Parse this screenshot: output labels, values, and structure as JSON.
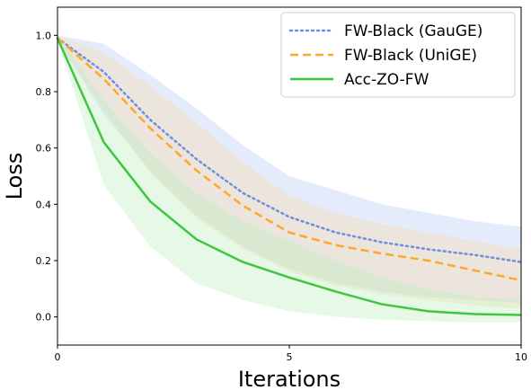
{
  "chart_data": {
    "type": "line",
    "xlabel": "Iterations",
    "ylabel": "Loss",
    "xlim": [
      0,
      10
    ],
    "ylim": [
      -0.1,
      1.1
    ],
    "x_ticks": [
      0,
      5,
      10
    ],
    "y_ticks": [
      0.0,
      0.2,
      0.4,
      0.6,
      0.8,
      1.0
    ],
    "x_tick_labels": [
      "0",
      "5",
      "10"
    ],
    "y_tick_labels": [
      "0.0",
      "0.2",
      "0.4",
      "0.6",
      "0.8",
      "1.0"
    ],
    "grid": false,
    "legend_position": "top-right",
    "x": [
      0,
      1,
      2,
      3,
      4,
      5,
      6,
      7,
      8,
      9,
      10
    ],
    "series": [
      {
        "name": "FW-Black (GauGE)",
        "color": "#6f8fde",
        "style": "dotted",
        "values": [
          0.99,
          0.87,
          0.7,
          0.56,
          0.44,
          0.355,
          0.3,
          0.265,
          0.24,
          0.22,
          0.195
        ],
        "band_upper": [
          1.0,
          0.97,
          0.86,
          0.74,
          0.61,
          0.5,
          0.45,
          0.4,
          0.37,
          0.34,
          0.32
        ],
        "band_lower": [
          0.98,
          0.72,
          0.52,
          0.36,
          0.25,
          0.17,
          0.12,
          0.09,
          0.07,
          0.06,
          0.05
        ],
        "band_color": "#b3c8f5"
      },
      {
        "name": "FW-Black (UniGE)",
        "color": "#ffa726",
        "style": "dashed",
        "values": [
          0.99,
          0.845,
          0.67,
          0.52,
          0.395,
          0.3,
          0.255,
          0.225,
          0.2,
          0.165,
          0.13
        ],
        "band_upper": [
          1.0,
          0.94,
          0.82,
          0.69,
          0.55,
          0.43,
          0.37,
          0.33,
          0.3,
          0.27,
          0.24
        ],
        "band_lower": [
          0.98,
          0.74,
          0.51,
          0.35,
          0.24,
          0.16,
          0.11,
          0.08,
          0.06,
          0.04,
          0.03
        ],
        "band_color": "#f9d9a6"
      },
      {
        "name": "Acc-ZO-FW",
        "color": "#3fc63f",
        "style": "solid",
        "values": [
          0.99,
          0.62,
          0.41,
          0.275,
          0.195,
          0.14,
          0.09,
          0.045,
          0.02,
          0.01,
          0.007
        ],
        "band_upper": [
          1.0,
          0.77,
          0.58,
          0.44,
          0.34,
          0.27,
          0.2,
          0.14,
          0.1,
          0.07,
          0.06
        ],
        "band_lower": [
          0.98,
          0.47,
          0.25,
          0.12,
          0.06,
          0.02,
          0.0,
          -0.01,
          -0.015,
          -0.02,
          -0.02
        ],
        "band_color": "#b7efb7"
      }
    ]
  }
}
